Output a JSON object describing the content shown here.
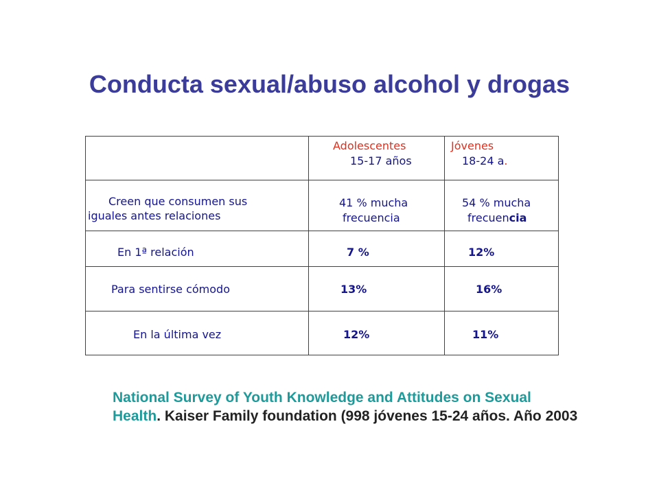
{
  "slide": {
    "title": "Conducta sexual/abuso alcohol y drogas"
  },
  "table": {
    "header": {
      "col1_title": "Adolescentes",
      "col1_sub": "15-17 años",
      "col2_title": "Jóvenes",
      "col2_sub": "18-24 a",
      "col2_sub_dot": "."
    },
    "rows": [
      {
        "label_line1": "Creen que consumen sus",
        "label_line2": "iguales  antes relaciones",
        "adol_line1": "41 % mucha",
        "adol_line2": "frecuencia",
        "jov_line1": "54  % mucha",
        "jov_line2_a": "frecuen",
        "jov_line2_b": "cia"
      },
      {
        "label": "En 1ª relación",
        "adol": "7 %",
        "jov": "12%"
      },
      {
        "label": "Para sentirse cómodo",
        "adol": "13%",
        "jov": "16%"
      },
      {
        "label": "En la última vez",
        "adol": "12%",
        "jov": "11%"
      }
    ]
  },
  "source": {
    "teal_part": "National Survey of Youth Knowledge and Attitudes on Sexual Health",
    "dark_part": ". Kaiser Family foundation (998 jóvenes 15-24 años. Año 2003"
  },
  "colors": {
    "title": "#3b3b9a",
    "table_text": "#14148c",
    "header_red": "#e0301e",
    "source_teal": "#1f9a9a",
    "source_dark": "#222222"
  }
}
